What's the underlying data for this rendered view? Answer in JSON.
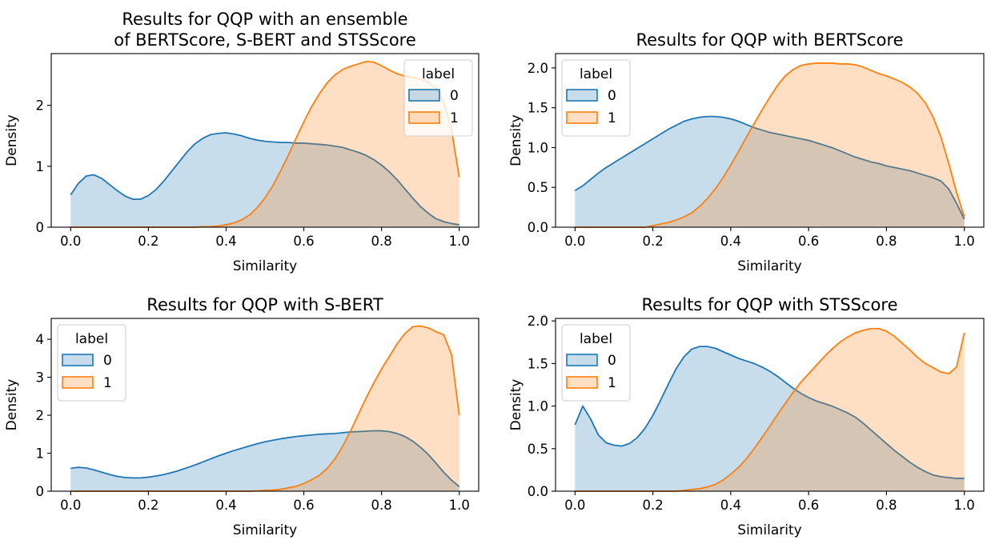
{
  "chart_data": [
    {
      "type": "area",
      "title": "Results for QQP with an ensemble of BERTScore, S-BERT and STSScore",
      "title_lines": [
        "Results for QQP with an ensemble",
        "of BERTScore, S-BERT and STSScore"
      ],
      "xlabel": "Similarity",
      "ylabel": "Density",
      "xlim": [
        -0.05,
        1.05
      ],
      "ylim": [
        0,
        2.85
      ],
      "xticks": [
        0.0,
        0.2,
        0.4,
        0.6,
        0.8,
        1.0
      ],
      "xtick_labels": [
        "0.0",
        "0.2",
        "0.4",
        "0.6",
        "0.8",
        "1.0"
      ],
      "yticks": [
        0,
        1,
        2
      ],
      "ytick_labels": [
        "0",
        "1",
        "2"
      ],
      "legend": {
        "title": "label",
        "placement": "top-right"
      },
      "series": [
        {
          "name": "0",
          "color": "#1f77b4",
          "x": [
            0.0,
            0.02,
            0.04,
            0.06,
            0.08,
            0.1,
            0.12,
            0.14,
            0.16,
            0.18,
            0.2,
            0.22,
            0.24,
            0.26,
            0.28,
            0.3,
            0.32,
            0.34,
            0.36,
            0.38,
            0.4,
            0.42,
            0.44,
            0.46,
            0.48,
            0.5,
            0.52,
            0.54,
            0.56,
            0.58,
            0.6,
            0.62,
            0.64,
            0.66,
            0.68,
            0.7,
            0.72,
            0.74,
            0.76,
            0.78,
            0.8,
            0.82,
            0.84,
            0.86,
            0.88,
            0.9,
            0.92,
            0.94,
            0.96,
            0.98,
            1.0
          ],
          "y": [
            0.53,
            0.72,
            0.84,
            0.86,
            0.8,
            0.7,
            0.6,
            0.51,
            0.46,
            0.46,
            0.52,
            0.62,
            0.76,
            0.92,
            1.08,
            1.24,
            1.37,
            1.46,
            1.52,
            1.54,
            1.55,
            1.53,
            1.5,
            1.46,
            1.43,
            1.41,
            1.4,
            1.39,
            1.39,
            1.38,
            1.38,
            1.37,
            1.36,
            1.35,
            1.33,
            1.31,
            1.27,
            1.23,
            1.18,
            1.11,
            1.02,
            0.91,
            0.78,
            0.63,
            0.48,
            0.34,
            0.23,
            0.14,
            0.09,
            0.06,
            0.04
          ]
        },
        {
          "name": "1",
          "color": "#ff7f0e",
          "x": [
            0.0,
            0.02,
            0.04,
            0.06,
            0.08,
            0.1,
            0.12,
            0.14,
            0.16,
            0.18,
            0.2,
            0.22,
            0.24,
            0.26,
            0.28,
            0.3,
            0.32,
            0.34,
            0.36,
            0.38,
            0.4,
            0.42,
            0.44,
            0.46,
            0.48,
            0.5,
            0.52,
            0.54,
            0.56,
            0.58,
            0.6,
            0.62,
            0.64,
            0.66,
            0.68,
            0.7,
            0.72,
            0.74,
            0.76,
            0.78,
            0.8,
            0.82,
            0.84,
            0.86,
            0.88,
            0.9,
            0.92,
            0.94,
            0.96,
            0.98,
            1.0
          ],
          "y": [
            0.0,
            0.0,
            0.0,
            0.0,
            0.0,
            0.0,
            0.0,
            0.0,
            0.0,
            0.0,
            0.0,
            0.0,
            0.0,
            0.0,
            0.0,
            0.0,
            0.0,
            0.01,
            0.01,
            0.02,
            0.04,
            0.07,
            0.12,
            0.2,
            0.32,
            0.48,
            0.68,
            0.92,
            1.18,
            1.46,
            1.73,
            1.98,
            2.19,
            2.37,
            2.5,
            2.59,
            2.64,
            2.68,
            2.72,
            2.71,
            2.65,
            2.58,
            2.52,
            2.48,
            2.46,
            2.43,
            2.38,
            2.28,
            2.06,
            1.6,
            0.82
          ]
        }
      ]
    },
    {
      "type": "area",
      "title": "Results for QQP with BERTScore",
      "title_lines": [
        "Results for QQP with BERTScore"
      ],
      "xlabel": "Similarity",
      "ylabel": "Density",
      "xlim": [
        -0.05,
        1.05
      ],
      "ylim": [
        0,
        2.18
      ],
      "xticks": [
        0.0,
        0.2,
        0.4,
        0.6,
        0.8,
        1.0
      ],
      "xtick_labels": [
        "0.0",
        "0.2",
        "0.4",
        "0.6",
        "0.8",
        "1.0"
      ],
      "yticks": [
        0.0,
        0.5,
        1.0,
        1.5,
        2.0
      ],
      "ytick_labels": [
        "0.0",
        "0.5",
        "1.0",
        "1.5",
        "2.0"
      ],
      "legend": {
        "title": "label",
        "placement": "top-left"
      },
      "series": [
        {
          "name": "0",
          "color": "#1f77b4",
          "x": [
            0.0,
            0.02,
            0.04,
            0.06,
            0.08,
            0.1,
            0.12,
            0.14,
            0.16,
            0.18,
            0.2,
            0.22,
            0.24,
            0.26,
            0.28,
            0.3,
            0.32,
            0.34,
            0.36,
            0.38,
            0.4,
            0.42,
            0.44,
            0.46,
            0.48,
            0.5,
            0.52,
            0.54,
            0.56,
            0.58,
            0.6,
            0.62,
            0.64,
            0.66,
            0.68,
            0.7,
            0.72,
            0.74,
            0.76,
            0.78,
            0.8,
            0.82,
            0.84,
            0.86,
            0.88,
            0.9,
            0.92,
            0.94,
            0.96,
            0.98,
            1.0
          ],
          "y": [
            0.46,
            0.52,
            0.6,
            0.68,
            0.75,
            0.81,
            0.87,
            0.93,
            0.99,
            1.05,
            1.11,
            1.17,
            1.23,
            1.28,
            1.33,
            1.36,
            1.38,
            1.39,
            1.39,
            1.38,
            1.36,
            1.33,
            1.29,
            1.25,
            1.22,
            1.19,
            1.17,
            1.15,
            1.13,
            1.11,
            1.09,
            1.06,
            1.03,
            1.0,
            0.96,
            0.92,
            0.88,
            0.85,
            0.82,
            0.8,
            0.77,
            0.75,
            0.73,
            0.71,
            0.68,
            0.65,
            0.62,
            0.58,
            0.48,
            0.3,
            0.1
          ]
        },
        {
          "name": "1",
          "color": "#ff7f0e",
          "x": [
            0.0,
            0.02,
            0.04,
            0.06,
            0.08,
            0.1,
            0.12,
            0.14,
            0.16,
            0.18,
            0.2,
            0.22,
            0.24,
            0.26,
            0.28,
            0.3,
            0.32,
            0.34,
            0.36,
            0.38,
            0.4,
            0.42,
            0.44,
            0.46,
            0.48,
            0.5,
            0.52,
            0.54,
            0.56,
            0.58,
            0.6,
            0.62,
            0.64,
            0.66,
            0.68,
            0.7,
            0.72,
            0.74,
            0.76,
            0.78,
            0.8,
            0.82,
            0.84,
            0.86,
            0.88,
            0.9,
            0.92,
            0.94,
            0.96,
            0.98,
            1.0
          ],
          "y": [
            0.0,
            0.0,
            0.0,
            0.0,
            0.0,
            0.0,
            0.0,
            0.0,
            0.0,
            0.0,
            0.02,
            0.04,
            0.06,
            0.09,
            0.13,
            0.18,
            0.26,
            0.36,
            0.48,
            0.62,
            0.78,
            0.95,
            1.13,
            1.3,
            1.47,
            1.63,
            1.78,
            1.9,
            1.98,
            2.03,
            2.05,
            2.06,
            2.06,
            2.06,
            2.05,
            2.05,
            2.04,
            2.01,
            1.97,
            1.93,
            1.9,
            1.86,
            1.82,
            1.76,
            1.68,
            1.56,
            1.38,
            1.13,
            0.8,
            0.44,
            0.13
          ]
        }
      ]
    },
    {
      "type": "area",
      "title": "Results for QQP with S-BERT",
      "title_lines": [
        "Results for QQP with S-BERT"
      ],
      "xlabel": "Similarity",
      "ylabel": "Density",
      "xlim": [
        -0.05,
        1.05
      ],
      "ylim": [
        0,
        4.55
      ],
      "xticks": [
        0.0,
        0.2,
        0.4,
        0.6,
        0.8,
        1.0
      ],
      "xtick_labels": [
        "0.0",
        "0.2",
        "0.4",
        "0.6",
        "0.8",
        "1.0"
      ],
      "yticks": [
        0,
        1,
        2,
        3,
        4
      ],
      "ytick_labels": [
        "0",
        "1",
        "2",
        "3",
        "4"
      ],
      "legend": {
        "title": "label",
        "placement": "top-left"
      },
      "series": [
        {
          "name": "0",
          "color": "#1f77b4",
          "x": [
            0.0,
            0.02,
            0.04,
            0.06,
            0.08,
            0.1,
            0.12,
            0.14,
            0.16,
            0.18,
            0.2,
            0.22,
            0.24,
            0.26,
            0.28,
            0.3,
            0.32,
            0.34,
            0.36,
            0.38,
            0.4,
            0.42,
            0.44,
            0.46,
            0.48,
            0.5,
            0.52,
            0.54,
            0.56,
            0.58,
            0.6,
            0.62,
            0.64,
            0.66,
            0.68,
            0.7,
            0.72,
            0.74,
            0.76,
            0.78,
            0.8,
            0.82,
            0.84,
            0.86,
            0.88,
            0.9,
            0.92,
            0.94,
            0.96,
            0.98,
            1.0
          ],
          "y": [
            0.6,
            0.63,
            0.61,
            0.56,
            0.5,
            0.44,
            0.39,
            0.36,
            0.35,
            0.35,
            0.37,
            0.4,
            0.44,
            0.49,
            0.55,
            0.62,
            0.69,
            0.77,
            0.85,
            0.93,
            1.0,
            1.07,
            1.13,
            1.19,
            1.25,
            1.3,
            1.34,
            1.38,
            1.41,
            1.44,
            1.46,
            1.48,
            1.5,
            1.51,
            1.52,
            1.54,
            1.56,
            1.57,
            1.58,
            1.59,
            1.59,
            1.57,
            1.52,
            1.44,
            1.32,
            1.16,
            0.97,
            0.74,
            0.5,
            0.29,
            0.12
          ]
        },
        {
          "name": "1",
          "color": "#ff7f0e",
          "x": [
            0.0,
            0.02,
            0.04,
            0.06,
            0.08,
            0.1,
            0.12,
            0.14,
            0.16,
            0.18,
            0.2,
            0.22,
            0.24,
            0.26,
            0.28,
            0.3,
            0.32,
            0.34,
            0.36,
            0.38,
            0.4,
            0.42,
            0.44,
            0.46,
            0.48,
            0.5,
            0.52,
            0.54,
            0.56,
            0.58,
            0.6,
            0.62,
            0.64,
            0.66,
            0.68,
            0.7,
            0.72,
            0.74,
            0.76,
            0.78,
            0.8,
            0.82,
            0.84,
            0.86,
            0.88,
            0.9,
            0.92,
            0.94,
            0.96,
            0.98,
            1.0
          ],
          "y": [
            0.0,
            0.0,
            0.0,
            0.0,
            0.0,
            0.0,
            0.0,
            0.0,
            0.0,
            0.0,
            0.0,
            0.0,
            0.0,
            0.0,
            0.0,
            0.0,
            0.0,
            0.0,
            0.0,
            0.0,
            0.0,
            0.0,
            0.0,
            0.0,
            0.01,
            0.02,
            0.03,
            0.05,
            0.09,
            0.13,
            0.2,
            0.3,
            0.42,
            0.6,
            0.85,
            1.18,
            1.58,
            2.02,
            2.45,
            2.85,
            3.22,
            3.55,
            3.88,
            4.15,
            4.33,
            4.35,
            4.3,
            4.2,
            4.12,
            3.6,
            2.0
          ]
        }
      ]
    },
    {
      "type": "area",
      "title": "Results for QQP with STSScore",
      "title_lines": [
        "Results for QQP with STSScore"
      ],
      "xlabel": "Similarity",
      "ylabel": "Density",
      "xlim": [
        -0.05,
        1.05
      ],
      "ylim": [
        0,
        2.03
      ],
      "xticks": [
        0.0,
        0.2,
        0.4,
        0.6,
        0.8,
        1.0
      ],
      "xtick_labels": [
        "0.0",
        "0.2",
        "0.4",
        "0.6",
        "0.8",
        "1.0"
      ],
      "yticks": [
        0.0,
        0.5,
        1.0,
        1.5,
        2.0
      ],
      "ytick_labels": [
        "0.0",
        "0.5",
        "1.0",
        "1.5",
        "2.0"
      ],
      "legend": {
        "title": "label",
        "placement": "top-left"
      },
      "series": [
        {
          "name": "0",
          "color": "#1f77b4",
          "x": [
            0.0,
            0.02,
            0.04,
            0.06,
            0.08,
            0.1,
            0.12,
            0.14,
            0.16,
            0.18,
            0.2,
            0.22,
            0.24,
            0.26,
            0.28,
            0.3,
            0.32,
            0.34,
            0.36,
            0.38,
            0.4,
            0.42,
            0.44,
            0.46,
            0.48,
            0.5,
            0.52,
            0.54,
            0.56,
            0.58,
            0.6,
            0.62,
            0.64,
            0.66,
            0.68,
            0.7,
            0.72,
            0.74,
            0.76,
            0.78,
            0.8,
            0.82,
            0.84,
            0.86,
            0.88,
            0.9,
            0.92,
            0.94,
            0.96,
            0.98,
            1.0
          ],
          "y": [
            0.78,
            1.0,
            0.85,
            0.66,
            0.57,
            0.54,
            0.53,
            0.56,
            0.63,
            0.74,
            0.89,
            1.07,
            1.26,
            1.44,
            1.58,
            1.67,
            1.7,
            1.7,
            1.68,
            1.64,
            1.6,
            1.56,
            1.53,
            1.5,
            1.46,
            1.41,
            1.35,
            1.28,
            1.21,
            1.15,
            1.1,
            1.06,
            1.03,
            1.0,
            0.96,
            0.92,
            0.87,
            0.8,
            0.72,
            0.64,
            0.56,
            0.48,
            0.41,
            0.34,
            0.28,
            0.23,
            0.19,
            0.17,
            0.16,
            0.15,
            0.15
          ]
        },
        {
          "name": "1",
          "color": "#ff7f0e",
          "x": [
            0.0,
            0.02,
            0.04,
            0.06,
            0.08,
            0.1,
            0.12,
            0.14,
            0.16,
            0.18,
            0.2,
            0.22,
            0.24,
            0.26,
            0.28,
            0.3,
            0.32,
            0.34,
            0.36,
            0.38,
            0.4,
            0.42,
            0.44,
            0.46,
            0.48,
            0.5,
            0.52,
            0.54,
            0.56,
            0.58,
            0.6,
            0.62,
            0.64,
            0.66,
            0.68,
            0.7,
            0.72,
            0.74,
            0.76,
            0.78,
            0.8,
            0.82,
            0.84,
            0.86,
            0.88,
            0.9,
            0.92,
            0.94,
            0.96,
            0.98,
            1.0
          ],
          "y": [
            0.0,
            0.0,
            0.0,
            0.0,
            0.0,
            0.0,
            0.0,
            0.0,
            0.0,
            0.0,
            0.0,
            0.0,
            0.0,
            0.0,
            0.01,
            0.02,
            0.03,
            0.05,
            0.08,
            0.13,
            0.2,
            0.28,
            0.38,
            0.5,
            0.63,
            0.76,
            0.9,
            1.03,
            1.16,
            1.28,
            1.38,
            1.48,
            1.58,
            1.67,
            1.75,
            1.81,
            1.86,
            1.89,
            1.91,
            1.91,
            1.88,
            1.82,
            1.74,
            1.66,
            1.57,
            1.5,
            1.45,
            1.4,
            1.38,
            1.46,
            1.86
          ]
        }
      ]
    }
  ]
}
